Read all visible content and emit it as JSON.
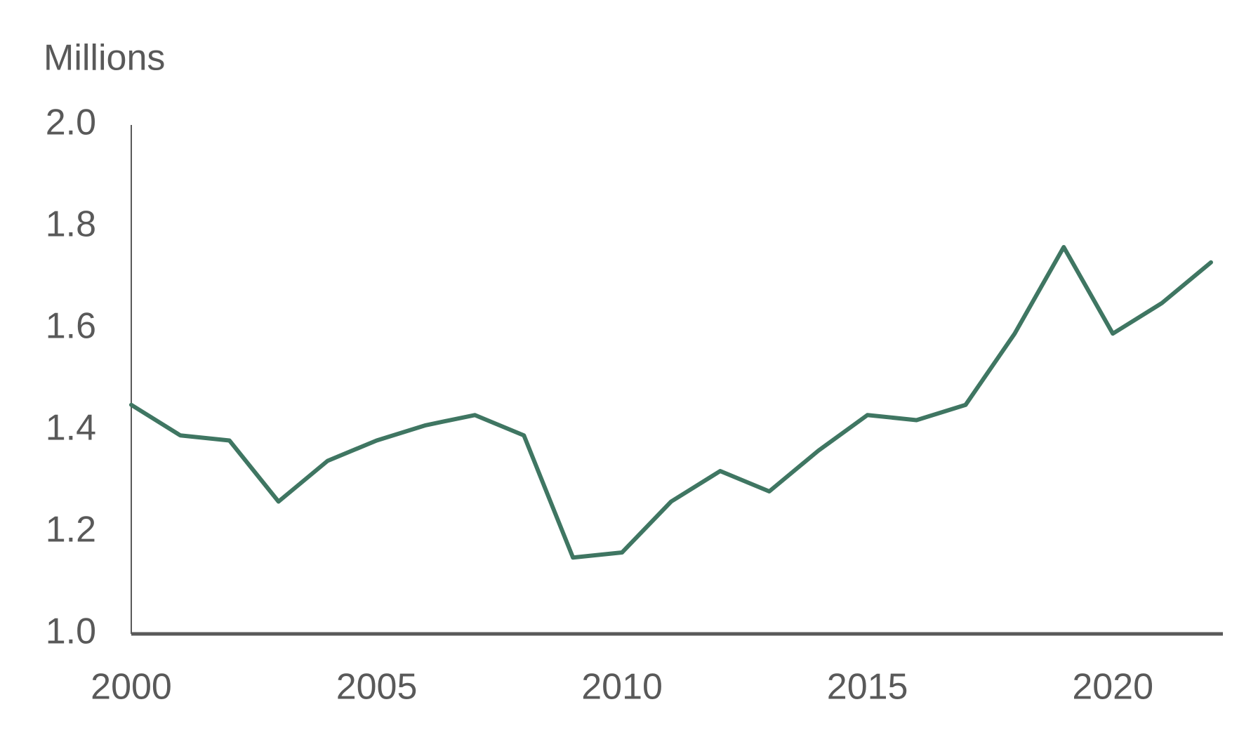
{
  "chart_data": {
    "type": "line",
    "y_label": "Millions",
    "x": [
      2000,
      2001,
      2002,
      2003,
      2004,
      2005,
      2006,
      2007,
      2008,
      2009,
      2010,
      2011,
      2012,
      2013,
      2014,
      2015,
      2016,
      2017,
      2018,
      2019,
      2020,
      2021,
      2022
    ],
    "series": [
      {
        "color": "#3f7662",
        "values": [
          1.45,
          1.39,
          1.38,
          1.26,
          1.34,
          1.38,
          1.41,
          1.43,
          1.39,
          1.15,
          1.16,
          1.26,
          1.32,
          1.28,
          1.36,
          1.43,
          1.42,
          1.45,
          1.59,
          1.76,
          1.59,
          1.65,
          1.73
        ]
      }
    ],
    "xlim": [
      2000,
      2022
    ],
    "xticks": [
      2000,
      2005,
      2010,
      2015,
      2020
    ],
    "ylim": [
      1,
      2
    ],
    "yticks": [
      {
        "value": 1,
        "label": "1.0"
      },
      1.2,
      1.4,
      1.6,
      1.8,
      {
        "value": 2,
        "label": "2.0"
      }
    ],
    "grid": false
  }
}
